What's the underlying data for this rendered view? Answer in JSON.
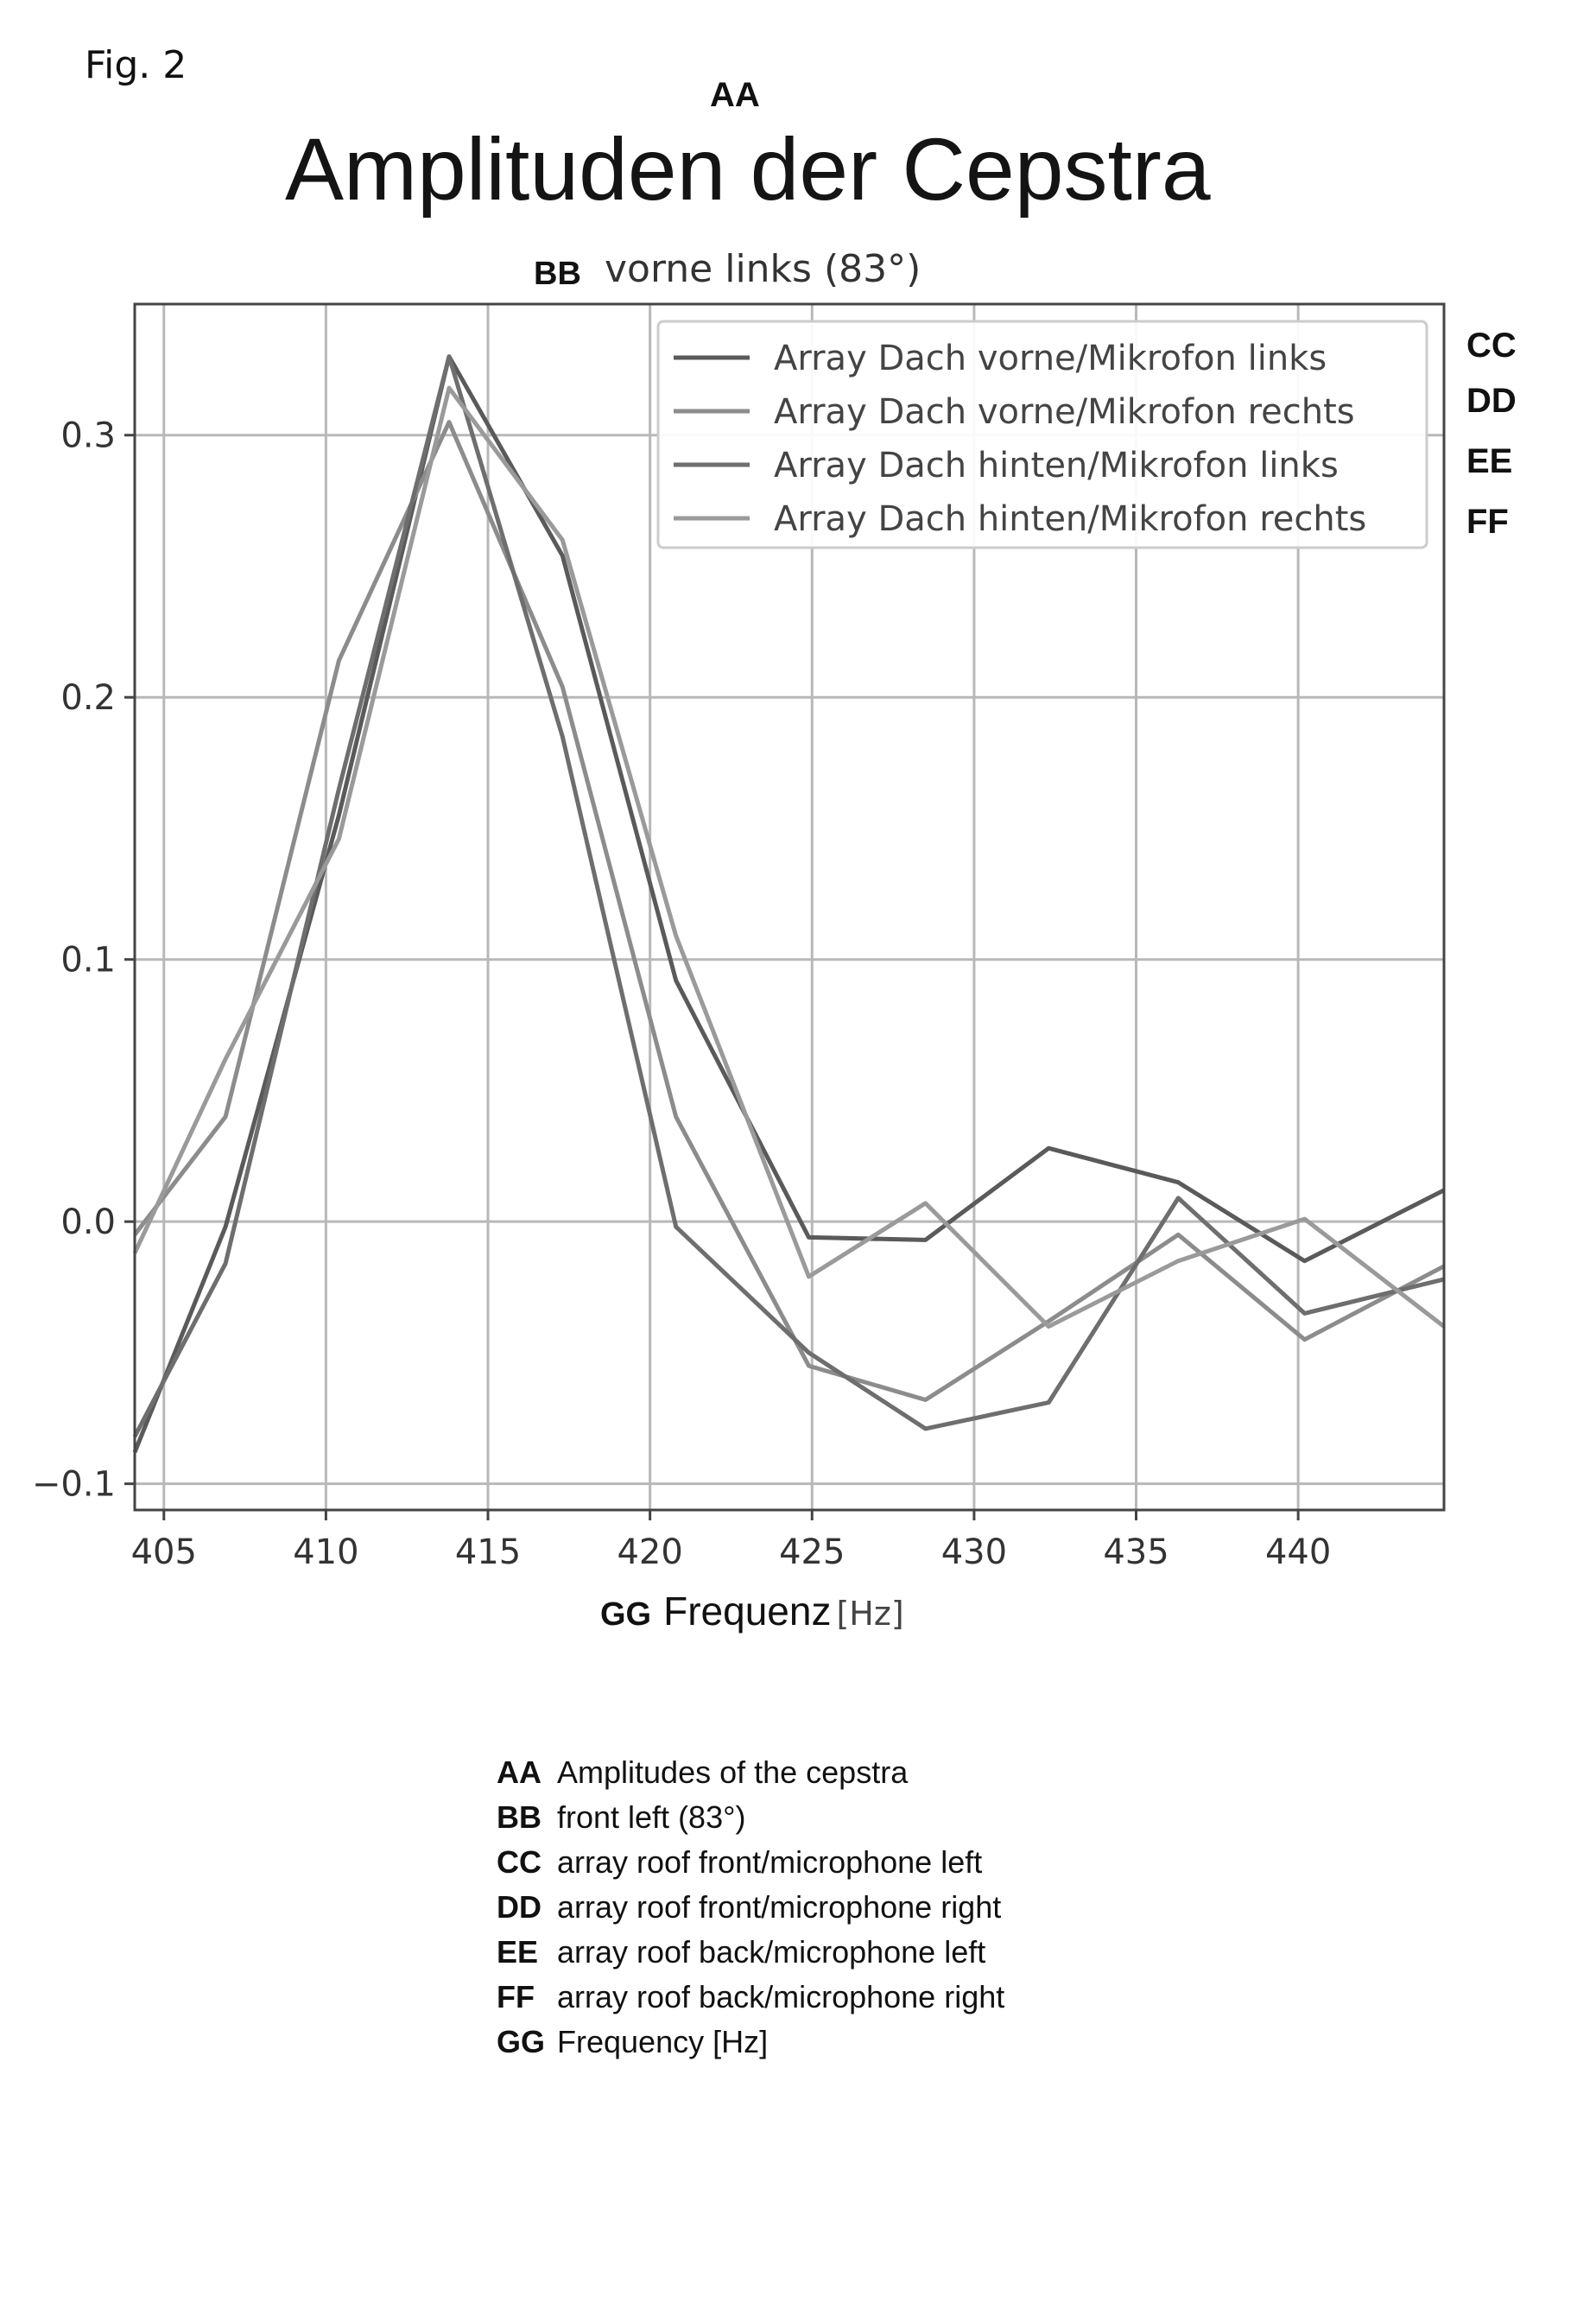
{
  "figure_label": "Fig. 2",
  "annotation_codes": {
    "title": "AA",
    "subtitle": "BB",
    "series": [
      "CC",
      "DD",
      "EE",
      "FF"
    ],
    "xlabel": "GG"
  },
  "glossary": [
    {
      "code": "AA",
      "text": "Amplitudes of the cepstra"
    },
    {
      "code": "BB",
      "text": "front left (83°)"
    },
    {
      "code": "CC",
      "text": "array roof front/microphone left"
    },
    {
      "code": "DD",
      "text": "array roof front/microphone right"
    },
    {
      "code": "EE",
      "text": "array roof back/microphone left"
    },
    {
      "code": "FF",
      "text": "array roof back/microphone right"
    },
    {
      "code": "GG",
      "text": "Frequency [Hz]"
    }
  ],
  "colors": {
    "series": [
      "#5a5a5a",
      "#8c8c8c",
      "#6e6e6e",
      "#9a9a9a"
    ],
    "grid": "#b8b8b8",
    "axis": "#444444"
  },
  "chart_data": {
    "type": "line",
    "title": "Amplituden der Cepstra",
    "subtitle": "vorne links (83°)",
    "xlabel": "Frequenz",
    "xlabel_unit": "[Hz]",
    "ylabel": "",
    "xlim": [
      404.1,
      444.5
    ],
    "ylim": [
      -0.11,
      0.35
    ],
    "xticks": [
      405,
      410,
      415,
      420,
      425,
      430,
      435,
      440
    ],
    "yticks": [
      -0.1,
      0.0,
      0.1,
      0.2,
      0.3
    ],
    "ytick_labels": [
      "−0.1",
      "0.0",
      "0.1",
      "0.2",
      "0.3"
    ],
    "grid": true,
    "legend_position": "top-right",
    "x": [
      404.1,
      406.9,
      410.4,
      413.8,
      417.3,
      420.8,
      424.9,
      428.5,
      432.3,
      436.3,
      440.2,
      444.5
    ],
    "series": [
      {
        "name": "Array Dach vorne/Mikrofon links",
        "values": [
          -0.088,
          -0.002,
          0.155,
          0.33,
          0.254,
          0.092,
          -0.006,
          -0.007,
          0.028,
          0.015,
          -0.015,
          0.012
        ]
      },
      {
        "name": "Array Dach vorne/Mikrofon rechts",
        "values": [
          -0.005,
          0.04,
          0.214,
          0.305,
          0.204,
          0.04,
          -0.055,
          -0.068,
          -0.038,
          -0.005,
          -0.045,
          -0.017
        ]
      },
      {
        "name": "Array Dach hinten/Mikrofon links",
        "values": [
          -0.082,
          -0.016,
          0.165,
          0.33,
          0.185,
          -0.002,
          -0.05,
          -0.079,
          -0.069,
          0.009,
          -0.035,
          -0.022
        ]
      },
      {
        "name": "Array Dach hinten/Mikrofon rechts",
        "values": [
          -0.012,
          0.062,
          0.146,
          0.318,
          0.26,
          0.109,
          -0.021,
          0.007,
          -0.04,
          -0.015,
          0.001,
          -0.04
        ]
      }
    ]
  }
}
